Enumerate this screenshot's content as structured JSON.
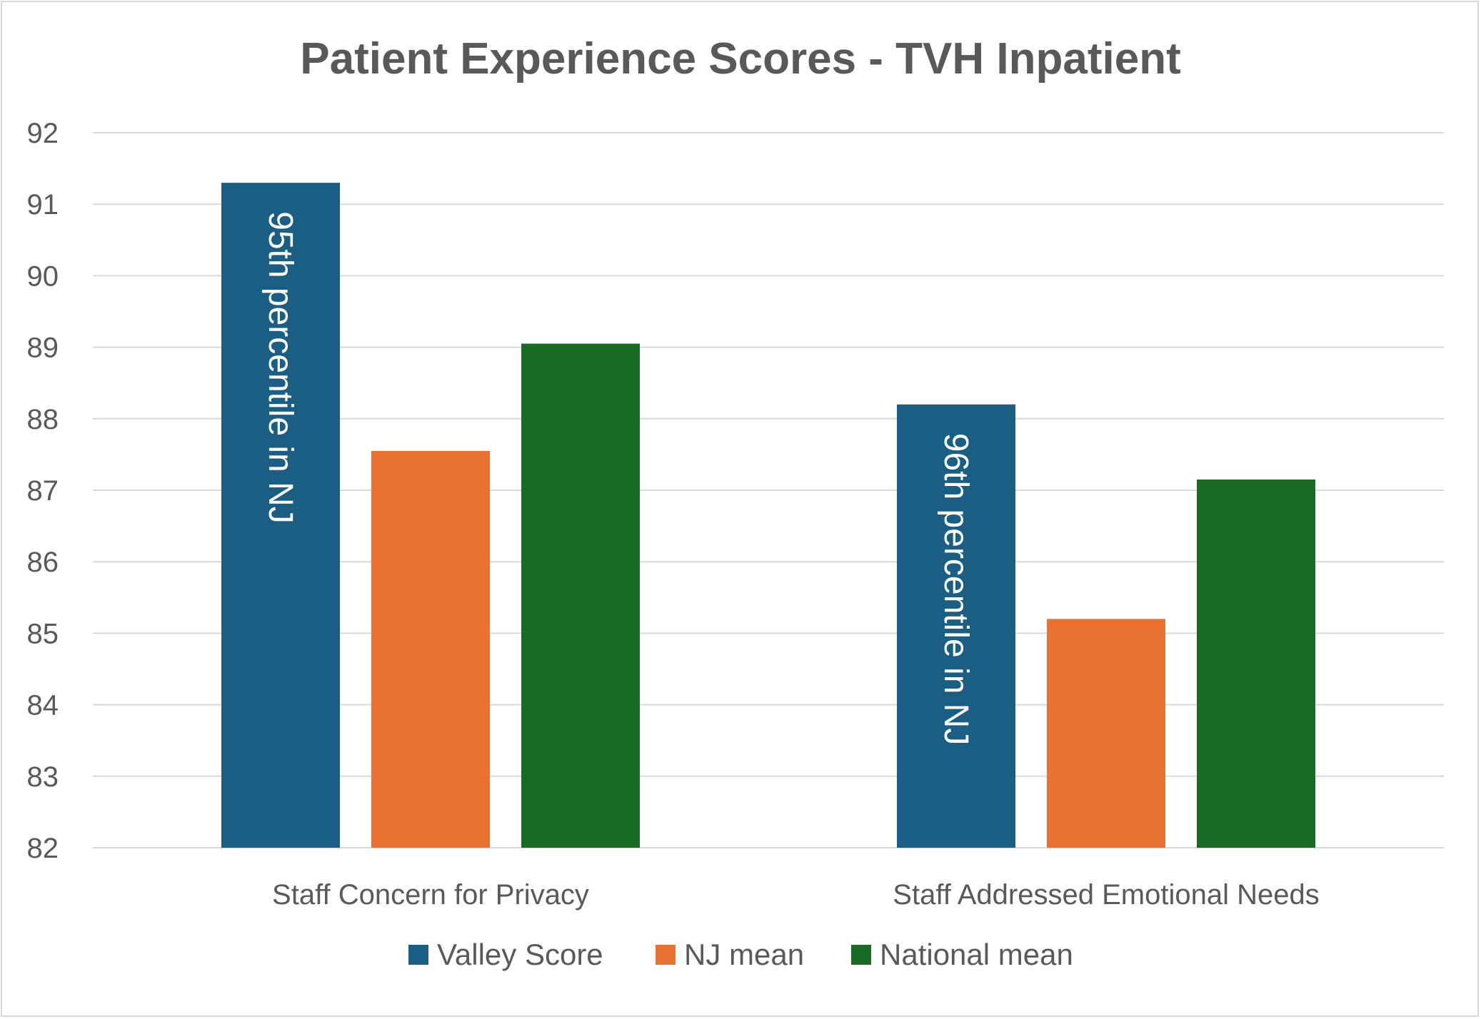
{
  "chart_data": {
    "type": "bar",
    "title": "Patient Experience Scores - TVH Inpatient",
    "xlabel": "",
    "ylabel": "",
    "ylim": [
      82,
      92
    ],
    "yticks": [
      "82",
      "83",
      "84",
      "85",
      "86",
      "87",
      "88",
      "89",
      "90",
      "91",
      "92"
    ],
    "grid": true,
    "legend_position": "bottom",
    "categories": [
      "Staff Concern for Privacy",
      "Staff Addressed Emotional Needs"
    ],
    "series": [
      {
        "name": "Valley Score",
        "color": "#1a5e83",
        "values": [
          91.3,
          88.2
        ]
      },
      {
        "name": "NJ mean",
        "color": "#e97132",
        "values": [
          87.55,
          85.2
        ]
      },
      {
        "name": "National mean",
        "color": "#196b24",
        "values": [
          89.05,
          87.15
        ]
      }
    ],
    "annotations": [
      {
        "series": 0,
        "category": 0,
        "text": "95th percentile  in NJ"
      },
      {
        "series": 0,
        "category": 1,
        "text": "96th percentile in NJ"
      }
    ]
  }
}
